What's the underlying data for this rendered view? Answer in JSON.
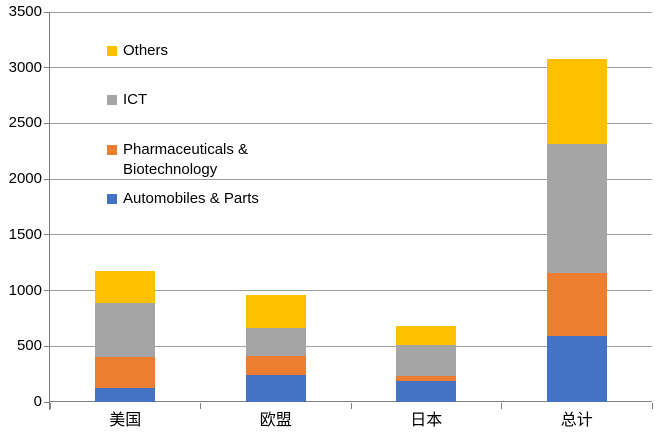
{
  "chart_data": {
    "type": "bar",
    "stacked": true,
    "title": "",
    "xlabel": "",
    "ylabel": "",
    "categories": [
      "美国",
      "欧盟",
      "日本",
      "总计"
    ],
    "series": [
      {
        "name": "Automobiles & Parts",
        "color": "#4472C4",
        "values": [
          130,
          245,
          185,
          590
        ]
      },
      {
        "name": "Pharmaceuticals & Biotechnology",
        "color": "#ED7D31",
        "values": [
          275,
          170,
          45,
          565
        ]
      },
      {
        "name": "ICT",
        "color": "#A5A5A5",
        "values": [
          485,
          250,
          280,
          1165
        ]
      },
      {
        "name": "Others",
        "color": "#FFC000",
        "values": [
          290,
          295,
          170,
          760
        ]
      }
    ],
    "stack_totals": [
      1180,
      960,
      680,
      3080
    ],
    "ylim": [
      0,
      3500
    ],
    "yticks": [
      0,
      500,
      1000,
      1500,
      2000,
      2500,
      3000,
      3500
    ],
    "grid": true,
    "legend": {
      "position": "inside-top-left",
      "entries": [
        "Others",
        "ICT",
        "Pharmaceuticals & Biotechnology",
        "Automobiles & Parts"
      ]
    }
  },
  "colors": {
    "background": "#FFFFFF",
    "gridline": "#9D9D9D",
    "axis": "#7F7F7F",
    "text": "#000000"
  }
}
